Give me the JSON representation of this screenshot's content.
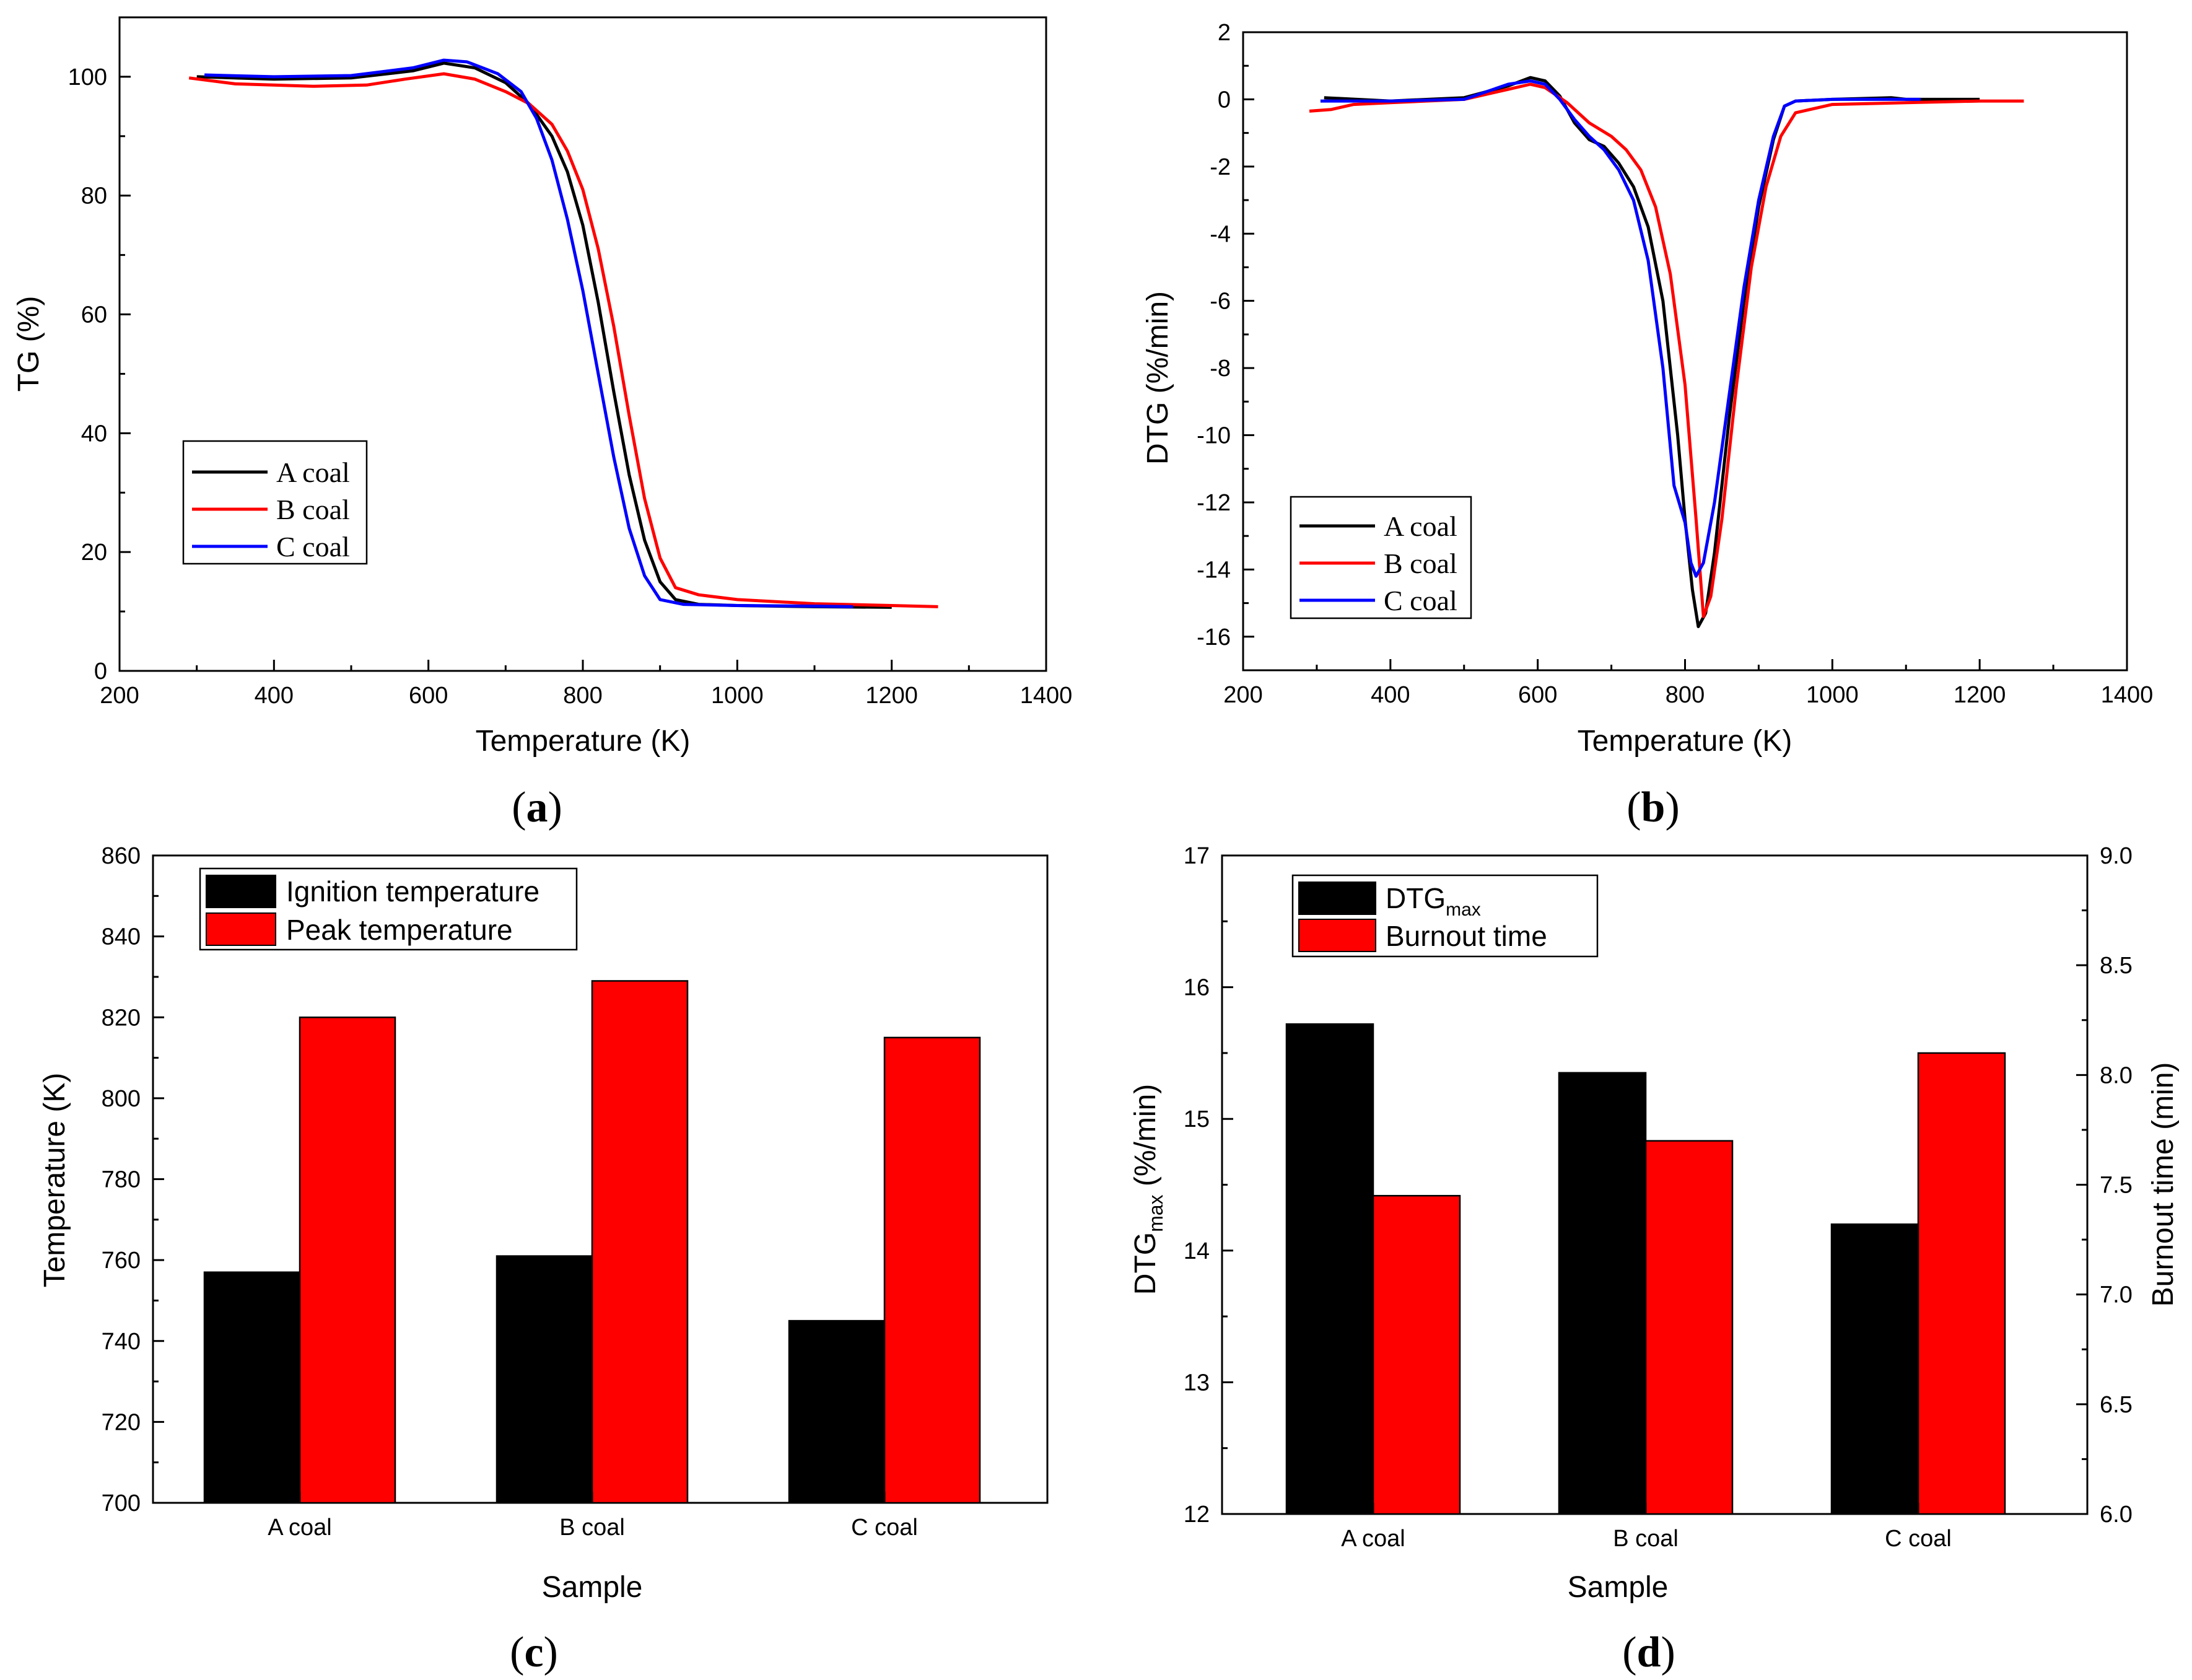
{
  "colors": {
    "A": "#000000",
    "B": "#ff0000",
    "C": "#0000ff",
    "axis": "#000000"
  },
  "panels": [
    {
      "id": "a",
      "caption_letter": "a"
    },
    {
      "id": "b",
      "caption_letter": "b"
    },
    {
      "id": "c",
      "caption_letter": "c"
    },
    {
      "id": "d",
      "caption_letter": "d"
    }
  ],
  "chart_data": [
    {
      "id": "a",
      "type": "line",
      "xlabel": "Temperature (K)",
      "ylabel": "TG (%)",
      "xlim": [
        200,
        1400
      ],
      "ylim": [
        0,
        110
      ],
      "xticks": [
        200,
        400,
        600,
        800,
        1000,
        1200,
        1400
      ],
      "yticks": [
        0,
        20,
        40,
        60,
        80,
        100
      ],
      "legend_position": "lower-left",
      "series": [
        {
          "name": "A coal",
          "color": "#000000",
          "points": [
            [
              300,
              100
            ],
            [
              400,
              99.6
            ],
            [
              500,
              99.8
            ],
            [
              580,
              101
            ],
            [
              620,
              102.3
            ],
            [
              660,
              101.5
            ],
            [
              700,
              99
            ],
            [
              730,
              95.5
            ],
            [
              760,
              90
            ],
            [
              780,
              84
            ],
            [
              800,
              75
            ],
            [
              820,
              62
            ],
            [
              840,
              47
            ],
            [
              860,
              33
            ],
            [
              880,
              22
            ],
            [
              900,
              15
            ],
            [
              920,
              12
            ],
            [
              950,
              11.2
            ],
            [
              1000,
              11
            ],
            [
              1100,
              10.8
            ],
            [
              1200,
              10.7
            ]
          ]
        },
        {
          "name": "B coal",
          "color": "#ff0000",
          "points": [
            [
              290,
              99.8
            ],
            [
              350,
              98.8
            ],
            [
              450,
              98.4
            ],
            [
              520,
              98.6
            ],
            [
              570,
              99.6
            ],
            [
              620,
              100.5
            ],
            [
              660,
              99.6
            ],
            [
              700,
              97.5
            ],
            [
              730,
              95.5
            ],
            [
              760,
              92
            ],
            [
              780,
              87.5
            ],
            [
              800,
              81
            ],
            [
              820,
              71
            ],
            [
              840,
              58
            ],
            [
              860,
              43
            ],
            [
              880,
              29
            ],
            [
              900,
              19
            ],
            [
              920,
              14
            ],
            [
              950,
              12.8
            ],
            [
              1000,
              12
            ],
            [
              1100,
              11.3
            ],
            [
              1200,
              11
            ],
            [
              1260,
              10.8
            ]
          ]
        },
        {
          "name": "C coal",
          "color": "#0000ff",
          "points": [
            [
              310,
              100.3
            ],
            [
              400,
              100
            ],
            [
              500,
              100.2
            ],
            [
              580,
              101.5
            ],
            [
              620,
              102.8
            ],
            [
              650,
              102.5
            ],
            [
              690,
              100.5
            ],
            [
              720,
              97.5
            ],
            [
              740,
              93
            ],
            [
              760,
              86
            ],
            [
              780,
              76
            ],
            [
              800,
              64
            ],
            [
              820,
              50
            ],
            [
              840,
              36
            ],
            [
              860,
              24
            ],
            [
              880,
              16
            ],
            [
              900,
              12
            ],
            [
              930,
              11.2
            ],
            [
              1000,
              11
            ],
            [
              1100,
              10.9
            ],
            [
              1150,
              10.8
            ]
          ]
        }
      ]
    },
    {
      "id": "b",
      "type": "line",
      "xlabel": "Temperature (K)",
      "ylabel": "DTG (%/min)",
      "xlim": [
        200,
        1400
      ],
      "ylim": [
        -17,
        2
      ],
      "xticks": [
        200,
        400,
        600,
        800,
        1000,
        1200,
        1400
      ],
      "yticks": [
        -16,
        -14,
        -12,
        -10,
        -8,
        -6,
        -4,
        -2,
        0,
        2
      ],
      "legend_position": "lower-left",
      "series": [
        {
          "name": "A coal",
          "color": "#000000",
          "points": [
            [
              310,
              0.05
            ],
            [
              400,
              -0.05
            ],
            [
              500,
              0.05
            ],
            [
              560,
              0.4
            ],
            [
              590,
              0.65
            ],
            [
              610,
              0.55
            ],
            [
              630,
              0.1
            ],
            [
              650,
              -0.7
            ],
            [
              670,
              -1.2
            ],
            [
              690,
              -1.4
            ],
            [
              710,
              -1.9
            ],
            [
              730,
              -2.6
            ],
            [
              750,
              -3.8
            ],
            [
              770,
              -6
            ],
            [
              790,
              -10
            ],
            [
              800,
              -12.5
            ],
            [
              810,
              -14.6
            ],
            [
              818,
              -15.7
            ],
            [
              828,
              -15.3
            ],
            [
              840,
              -13.5
            ],
            [
              860,
              -9.5
            ],
            [
              880,
              -6
            ],
            [
              900,
              -3.2
            ],
            [
              920,
              -1.2
            ],
            [
              935,
              -0.2
            ],
            [
              950,
              -0.05
            ],
            [
              1000,
              0
            ],
            [
              1080,
              0.05
            ],
            [
              1100,
              0
            ],
            [
              1200,
              0
            ]
          ]
        },
        {
          "name": "B coal",
          "color": "#ff0000",
          "points": [
            [
              290,
              -0.35
            ],
            [
              320,
              -0.3
            ],
            [
              350,
              -0.15
            ],
            [
              400,
              -0.1
            ],
            [
              500,
              0
            ],
            [
              560,
              0.3
            ],
            [
              590,
              0.45
            ],
            [
              610,
              0.35
            ],
            [
              640,
              -0.1
            ],
            [
              670,
              -0.7
            ],
            [
              700,
              -1.1
            ],
            [
              720,
              -1.5
            ],
            [
              740,
              -2.1
            ],
            [
              760,
              -3.2
            ],
            [
              780,
              -5.2
            ],
            [
              800,
              -8.5
            ],
            [
              815,
              -12.5
            ],
            [
              825,
              -15.4
            ],
            [
              835,
              -14.8
            ],
            [
              850,
              -12.5
            ],
            [
              870,
              -8.5
            ],
            [
              890,
              -5
            ],
            [
              910,
              -2.6
            ],
            [
              930,
              -1.1
            ],
            [
              950,
              -0.4
            ],
            [
              1000,
              -0.15
            ],
            [
              1100,
              -0.1
            ],
            [
              1200,
              -0.05
            ],
            [
              1260,
              -0.05
            ]
          ]
        },
        {
          "name": "C coal",
          "color": "#0000ff",
          "points": [
            [
              305,
              -0.05
            ],
            [
              400,
              -0.05
            ],
            [
              500,
              0
            ],
            [
              560,
              0.45
            ],
            [
              590,
              0.55
            ],
            [
              610,
              0.45
            ],
            [
              630,
              0
            ],
            [
              650,
              -0.6
            ],
            [
              670,
              -1.1
            ],
            [
              690,
              -1.5
            ],
            [
              710,
              -2.1
            ],
            [
              730,
              -3
            ],
            [
              750,
              -4.8
            ],
            [
              770,
              -8
            ],
            [
              785,
              -11.5
            ],
            [
              800,
              -12.6
            ],
            [
              808,
              -13.8
            ],
            [
              815,
              -14.2
            ],
            [
              825,
              -13.8
            ],
            [
              840,
              -12
            ],
            [
              860,
              -8.8
            ],
            [
              880,
              -5.6
            ],
            [
              900,
              -3
            ],
            [
              920,
              -1.1
            ],
            [
              935,
              -0.2
            ],
            [
              950,
              -0.05
            ],
            [
              1000,
              0
            ],
            [
              1100,
              0
            ],
            [
              1120,
              0
            ]
          ]
        }
      ]
    },
    {
      "id": "c",
      "type": "bar",
      "xlabel": "Sample",
      "ylabel": "Temperature (K)",
      "ylim": [
        700,
        860
      ],
      "yticks": [
        700,
        720,
        740,
        760,
        780,
        800,
        820,
        840,
        860
      ],
      "categories": [
        "A coal",
        "B coal",
        "C coal"
      ],
      "legend_position": "top-left",
      "series": [
        {
          "name": "Ignition temperature",
          "color": "#000000",
          "values": [
            757,
            761,
            745
          ]
        },
        {
          "name": "Peak temperature",
          "color": "#ff0000",
          "values": [
            820,
            829,
            815
          ]
        }
      ]
    },
    {
      "id": "d",
      "type": "bar",
      "xlabel": "Sample",
      "ylabel_main": "DTG",
      "ylabel_sub": "max",
      "ylabel_rest": " (%/min)",
      "ylabel_right": "Burnout time (min)",
      "ylim": [
        12,
        17
      ],
      "yticks": [
        12,
        13,
        14,
        15,
        16,
        17
      ],
      "ylim_right": [
        6.0,
        9.0
      ],
      "yticks_right": [
        "6.0",
        "6.5",
        "7.0",
        "7.5",
        "8.0",
        "8.5",
        "9.0"
      ],
      "categories": [
        "A coal",
        "B coal",
        "C coal"
      ],
      "legend_position": "top-left",
      "series": [
        {
          "name_main": "DTG",
          "name_sub": "max",
          "color": "#000000",
          "axis": "left",
          "values": [
            15.72,
            15.35,
            14.2
          ]
        },
        {
          "name": "Burnout time",
          "color": "#ff0000",
          "axis": "right",
          "values": [
            7.45,
            7.7,
            8.1
          ]
        }
      ]
    }
  ]
}
